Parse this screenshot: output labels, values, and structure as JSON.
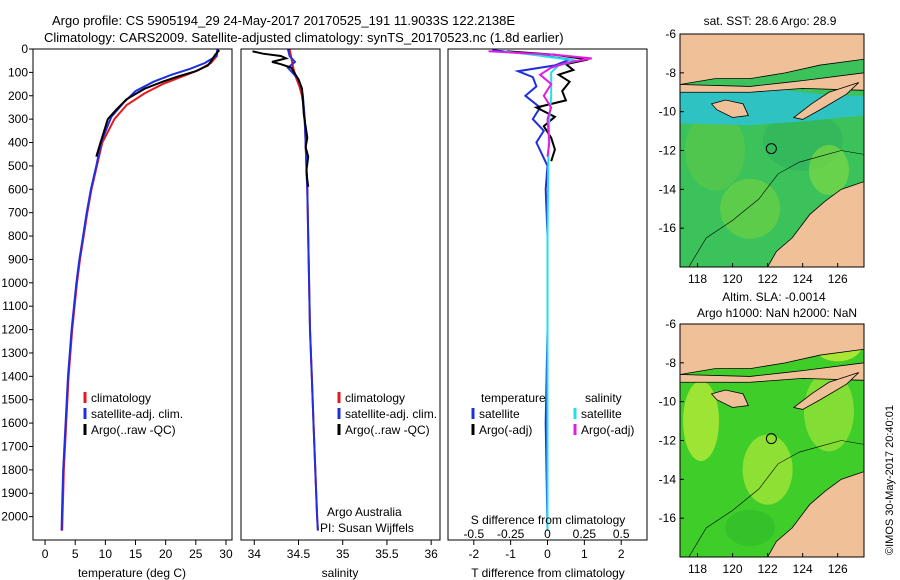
{
  "header": {
    "line1": "Argo profile: CS 5905194_29 24-May-2017 20170525_191 11.9033S 122.2138E",
    "line2": "Climatology: CARS2009. Satellite-adjusted climatology: synTS_20170523.nc (1.8d earlier)"
  },
  "copyright": "©IMOS 30-May-2017 20:40:01",
  "colors": {
    "climatology": "#e8191c",
    "satellite": "#1f2fe0",
    "argo": "#000000",
    "sal_satellite": "#22e0e8",
    "sal_argo": "#e01ee0",
    "ocean": "#2fc2c2",
    "land": "#f0c098"
  },
  "chart_data": [
    {
      "type": "line",
      "id": "temperature",
      "xlabel": "temperature (deg C)",
      "ylabel": "",
      "xlim": [
        -2,
        31
      ],
      "ylim": [
        2100,
        0
      ],
      "xticks": [
        0,
        5,
        10,
        15,
        20,
        25,
        30
      ],
      "yticks": [
        0,
        100,
        200,
        300,
        400,
        500,
        600,
        700,
        800,
        900,
        1000,
        1100,
        1200,
        1300,
        1400,
        1500,
        1600,
        1700,
        1800,
        1900,
        2000
      ],
      "legend": [
        "climatology",
        "satellite-adj. clim.",
        "Argo(..raw -QC)"
      ],
      "series": [
        {
          "name": "climatology",
          "color": "#e8191c",
          "points": [
            [
              28.6,
              0
            ],
            [
              28.5,
              30
            ],
            [
              27.5,
              60
            ],
            [
              25.5,
              90
            ],
            [
              22.5,
              120
            ],
            [
              19.5,
              150
            ],
            [
              16.5,
              190
            ],
            [
              13.5,
              240
            ],
            [
              11.5,
              300
            ],
            [
              10.5,
              350
            ],
            [
              9.5,
              400
            ],
            [
              8.6,
              500
            ],
            [
              7.7,
              600
            ],
            [
              7,
              700
            ],
            [
              6.4,
              800
            ],
            [
              5.8,
              900
            ],
            [
              5.3,
              1000
            ],
            [
              4.9,
              1100
            ],
            [
              4.5,
              1200
            ],
            [
              4.2,
              1300
            ],
            [
              3.9,
              1400
            ],
            [
              3.7,
              1500
            ],
            [
              3.5,
              1600
            ],
            [
              3.3,
              1700
            ],
            [
              3.1,
              1800
            ],
            [
              3,
              1900
            ],
            [
              2.9,
              2000
            ],
            [
              2.85,
              2060
            ]
          ]
        },
        {
          "name": "satellite-adj. clim.",
          "color": "#1f2fe0",
          "points": [
            [
              28.6,
              0
            ],
            [
              28.4,
              30
            ],
            [
              26.5,
              60
            ],
            [
              24,
              85
            ],
            [
              21,
              110
            ],
            [
              18,
              140
            ],
            [
              15,
              180
            ],
            [
              13,
              230
            ],
            [
              11,
              290
            ],
            [
              10.2,
              340
            ],
            [
              9.3,
              400
            ],
            [
              8.5,
              500
            ],
            [
              7.6,
              600
            ],
            [
              6.9,
              700
            ],
            [
              6.3,
              800
            ],
            [
              5.7,
              900
            ],
            [
              5.2,
              1000
            ],
            [
              4.8,
              1100
            ],
            [
              4.4,
              1200
            ],
            [
              4.1,
              1300
            ],
            [
              3.8,
              1400
            ],
            [
              3.6,
              1500
            ],
            [
              3.4,
              1600
            ],
            [
              3.2,
              1700
            ],
            [
              3,
              1800
            ],
            [
              2.9,
              1900
            ],
            [
              2.8,
              2000
            ],
            [
              2.75,
              2060
            ]
          ]
        },
        {
          "name": "Argo(..raw -QC)",
          "color": "#000000",
          "points": [
            [
              28.9,
              5
            ],
            [
              28.2,
              25
            ],
            [
              27.6,
              50
            ],
            [
              27,
              70
            ],
            [
              25,
              95
            ],
            [
              22,
              118
            ],
            [
              19.5,
              140
            ],
            [
              16.5,
              170
            ],
            [
              13.5,
              215
            ],
            [
              11.8,
              260
            ],
            [
              10.4,
              300
            ],
            [
              9.8,
              350
            ],
            [
              9.2,
              400
            ],
            [
              8.5,
              460
            ]
          ]
        }
      ]
    },
    {
      "type": "line",
      "id": "salinity",
      "xlabel": "salinity",
      "ylabel": "",
      "xlim": [
        33.85,
        36.1
      ],
      "ylim": [
        2100,
        0
      ],
      "xticks": [
        34,
        34.5,
        35,
        35.5,
        36
      ],
      "legend": [
        "climatology",
        "satellite-adj. clim.",
        "Argo(..raw -QC)"
      ],
      "annotation": [
        "Argo Australia",
        "PI: Susan Wijffels"
      ],
      "series": [
        {
          "name": "climatology",
          "color": "#e8191c",
          "points": [
            [
              34.4,
              0
            ],
            [
              34.42,
              40
            ],
            [
              34.44,
              80
            ],
            [
              34.47,
              120
            ],
            [
              34.51,
              160
            ],
            [
              34.54,
              200
            ],
            [
              34.56,
              250
            ],
            [
              34.57,
              300
            ],
            [
              34.58,
              400
            ],
            [
              34.59,
              500
            ],
            [
              34.6,
              600
            ],
            [
              34.61,
              800
            ],
            [
              34.62,
              1000
            ],
            [
              34.63,
              1200
            ],
            [
              34.65,
              1400
            ],
            [
              34.67,
              1600
            ],
            [
              34.69,
              1800
            ],
            [
              34.71,
              2000
            ],
            [
              34.72,
              2060
            ]
          ]
        },
        {
          "name": "satellite-adj. clim.",
          "color": "#1f2fe0",
          "points": [
            [
              34.38,
              0
            ],
            [
              34.4,
              30
            ],
            [
              34.46,
              55
            ],
            [
              34.38,
              80
            ],
            [
              34.44,
              105
            ],
            [
              34.5,
              130
            ],
            [
              34.53,
              160
            ],
            [
              34.55,
              200
            ],
            [
              34.56,
              250
            ],
            [
              34.57,
              300
            ],
            [
              34.58,
              400
            ],
            [
              34.59,
              500
            ],
            [
              34.6,
              600
            ],
            [
              34.61,
              800
            ],
            [
              34.62,
              1000
            ],
            [
              34.63,
              1200
            ],
            [
              34.65,
              1400
            ],
            [
              34.67,
              1600
            ],
            [
              34.69,
              1800
            ],
            [
              34.71,
              2000
            ],
            [
              34.72,
              2060
            ]
          ]
        },
        {
          "name": "Argo(..raw -QC)",
          "color": "#000000",
          "points": [
            [
              33.98,
              10
            ],
            [
              34.1,
              20
            ],
            [
              34.3,
              30
            ],
            [
              34.36,
              40
            ],
            [
              34.2,
              55
            ],
            [
              34.3,
              65
            ],
            [
              34.42,
              80
            ],
            [
              34.45,
              100
            ],
            [
              34.5,
              130
            ],
            [
              34.54,
              170
            ],
            [
              34.55,
              220
            ],
            [
              34.56,
              280
            ],
            [
              34.58,
              330
            ],
            [
              34.6,
              380
            ],
            [
              34.58,
              420
            ],
            [
              34.61,
              460
            ],
            [
              34.59,
              520
            ],
            [
              34.6,
              560
            ],
            [
              34.61,
              590
            ]
          ]
        }
      ]
    },
    {
      "type": "line",
      "id": "difference",
      "xlabel": "T difference from climatology",
      "xlabel_top": "S difference from climatology",
      "xlim": [
        -2.7,
        2.7
      ],
      "ylim": [
        2100,
        0
      ],
      "xticks": [
        -2,
        -1,
        0,
        1,
        2
      ],
      "xticks_top": [
        "-0.5",
        "-0.25",
        "0",
        "0.25",
        "0.5"
      ],
      "xticks_top_pos": [
        -2,
        -1,
        0,
        1,
        2
      ],
      "legend_left_title": "temperature",
      "legend_right_title": "salinity",
      "legend": [
        "satellite",
        "Argo(-adj)",
        "satellite",
        "Argo(-adj)"
      ],
      "series": [
        {
          "name": "T satellite",
          "color": "#1f2fe0",
          "points": [
            [
              -1.5,
              5
            ],
            [
              -0.5,
              20
            ],
            [
              0.6,
              45
            ],
            [
              0.2,
              70
            ],
            [
              -0.8,
              95
            ],
            [
              -0.4,
              120
            ],
            [
              -0.3,
              160
            ],
            [
              -0.6,
              200
            ],
            [
              -0.2,
              250
            ],
            [
              -0.4,
              300
            ],
            [
              -0.1,
              350
            ],
            [
              -0.3,
              400
            ],
            [
              0,
              500
            ],
            [
              -0.05,
              600
            ],
            [
              0,
              800
            ],
            [
              0,
              1200
            ],
            [
              -0.05,
              1600
            ],
            [
              0,
              2060
            ]
          ]
        },
        {
          "name": "T Argo",
          "color": "#000000",
          "points": [
            [
              -1.1,
              10
            ],
            [
              0.2,
              25
            ],
            [
              1.1,
              45
            ],
            [
              0.5,
              65
            ],
            [
              0.7,
              90
            ],
            [
              0.3,
              110
            ],
            [
              0.6,
              140
            ],
            [
              0.4,
              180
            ],
            [
              0.5,
              220
            ],
            [
              -0.3,
              250
            ],
            [
              0.2,
              290
            ],
            [
              -0.1,
              330
            ],
            [
              0.1,
              380
            ],
            [
              0.2,
              430
            ],
            [
              0.1,
              480
            ]
          ]
        },
        {
          "name": "S satellite",
          "color": "#22e0e8",
          "points": [
            [
              -1.2,
              10
            ],
            [
              -0.4,
              25
            ],
            [
              0.8,
              50
            ],
            [
              0.3,
              70
            ],
            [
              0.1,
              100
            ],
            [
              0.1,
              200
            ],
            [
              0.05,
              300
            ],
            [
              0.02,
              500
            ],
            [
              0,
              800
            ],
            [
              0,
              1200
            ],
            [
              0,
              2060
            ]
          ]
        },
        {
          "name": "S Argo",
          "color": "#e01ee0",
          "points": [
            [
              -1.6,
              10
            ],
            [
              0.2,
              25
            ],
            [
              1.2,
              40
            ],
            [
              0.5,
              60
            ],
            [
              0.1,
              80
            ],
            [
              -0.2,
              110
            ],
            [
              0.1,
              150
            ],
            [
              -0.1,
              200
            ],
            [
              0.1,
              250
            ],
            [
              0,
              300
            ],
            [
              0.05,
              400
            ],
            [
              0,
              460
            ]
          ]
        }
      ]
    },
    {
      "type": "heatmap",
      "id": "sst-map",
      "title": "sat. SST: 28.6 Argo: 28.9",
      "xlim": [
        117,
        127.5
      ],
      "ylim": [
        -18,
        -6
      ],
      "xticks": [
        118,
        120,
        122,
        124,
        126
      ],
      "yticks": [
        -6,
        -8,
        -10,
        -12,
        -14,
        -16
      ],
      "marker": {
        "lon": 122.2138,
        "lat": -11.9033
      }
    },
    {
      "type": "heatmap",
      "id": "sla-map",
      "title": "Altim. SLA: -0.0014",
      "subtitle": "Argo h1000: NaN h2000: NaN",
      "xlim": [
        117,
        127.5
      ],
      "ylim": [
        -18,
        -6
      ],
      "xticks": [
        118,
        120,
        122,
        124,
        126
      ],
      "yticks": [
        -6,
        -8,
        -10,
        -12,
        -14,
        -16
      ],
      "marker": {
        "lon": 122.2138,
        "lat": -11.9033
      }
    }
  ]
}
